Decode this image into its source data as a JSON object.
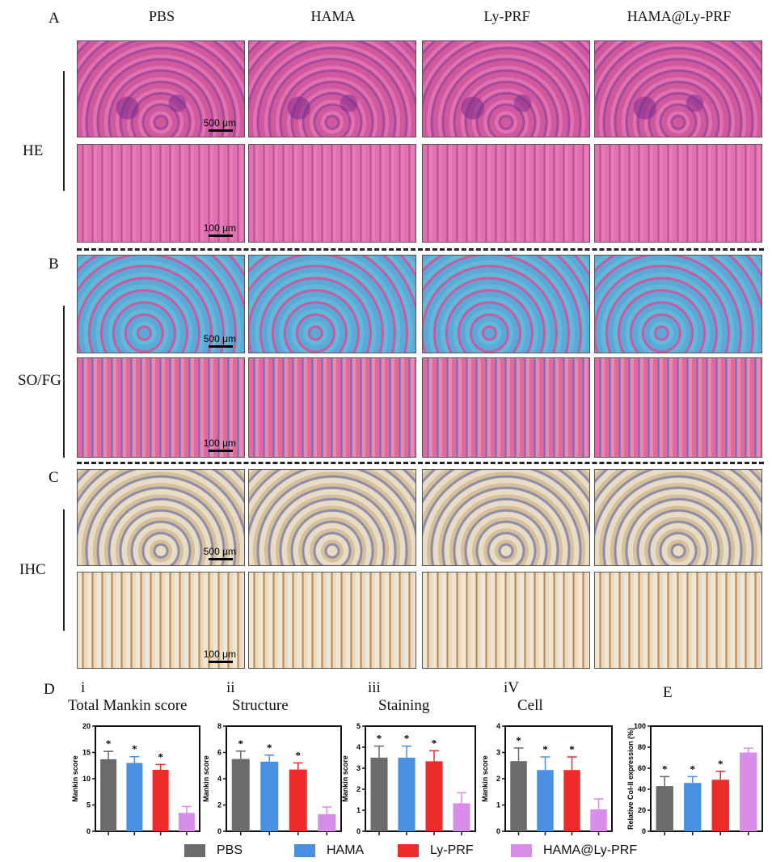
{
  "panel_letters": {
    "A": "A",
    "B": "B",
    "C": "C",
    "D": "D",
    "E": "E"
  },
  "groups": [
    "PBS",
    "HAMA",
    "Ly-PRF",
    "HAMA@Ly-PRF"
  ],
  "row_labels": {
    "he": "HE",
    "so": "SO/FG",
    "ihc": "IHC"
  },
  "scale_bars": {
    "low": "500 μm",
    "high": "100 μm"
  },
  "colors": {
    "PBS": "#6b6b6b",
    "HAMA": "#4a90e2",
    "Ly-PRF": "#ee2a2a",
    "HAMA@Ly-PRF": "#d88ee8"
  },
  "chart_data": [
    {
      "type": "bar",
      "id": "i",
      "numeral": "i",
      "title": "Total Mankin  score",
      "ylabel": "Mankin score",
      "ylim": [
        0,
        20
      ],
      "ticks": [
        0,
        5,
        10,
        15,
        20
      ],
      "categories": [
        "PBS",
        "HAMA",
        "Ly-PRF",
        "HAMA@Ly-PRF"
      ],
      "values": [
        13.7,
        13.0,
        11.7,
        3.5
      ],
      "errors": [
        1.5,
        1.2,
        1.0,
        1.2
      ],
      "significance": [
        "*",
        "*",
        "*",
        ""
      ]
    },
    {
      "type": "bar",
      "id": "ii",
      "numeral": "ii",
      "title": "Structure",
      "ylabel": "Mankin score",
      "ylim": [
        0,
        8
      ],
      "ticks": [
        0,
        2,
        4,
        6,
        8
      ],
      "categories": [
        "PBS",
        "HAMA",
        "Ly-PRF",
        "HAMA@Ly-PRF"
      ],
      "values": [
        5.5,
        5.3,
        4.7,
        1.3
      ],
      "errors": [
        0.6,
        0.5,
        0.5,
        0.55
      ],
      "significance": [
        "*",
        "*",
        "*",
        ""
      ]
    },
    {
      "type": "bar",
      "id": "iii",
      "numeral": "iii",
      "title": "Staining",
      "ylabel": "Mankin score",
      "ylim": [
        0,
        5
      ],
      "ticks": [
        0,
        1,
        2,
        3,
        4,
        5
      ],
      "categories": [
        "PBS",
        "HAMA",
        "Ly-PRF",
        "HAMA@Ly-PRF"
      ],
      "values": [
        3.5,
        3.5,
        3.33,
        1.33
      ],
      "errors": [
        0.55,
        0.55,
        0.5,
        0.5
      ],
      "significance": [
        "*",
        "*",
        "*",
        ""
      ]
    },
    {
      "type": "bar",
      "id": "iv",
      "numeral": "iV",
      "title": "Cell",
      "ylabel": "Mankin score",
      "ylim": [
        0,
        4
      ],
      "ticks": [
        0,
        1,
        2,
        3,
        4
      ],
      "categories": [
        "PBS",
        "HAMA",
        "Ly-PRF",
        "HAMA@Ly-PRF"
      ],
      "values": [
        2.67,
        2.33,
        2.33,
        0.83
      ],
      "errors": [
        0.5,
        0.5,
        0.5,
        0.4
      ],
      "significance": [
        "*",
        "*",
        "*",
        ""
      ]
    },
    {
      "type": "bar",
      "id": "E",
      "numeral": "",
      "title": "",
      "ylabel": "Relative Col-II expression (%)",
      "ylim": [
        0,
        100
      ],
      "ticks": [
        0,
        20,
        40,
        60,
        80,
        100
      ],
      "categories": [
        "PBS",
        "HAMA",
        "Ly-PRF",
        "HAMA@Ly-PRF"
      ],
      "values": [
        43,
        46,
        49,
        75
      ],
      "errors": [
        9,
        6,
        8,
        4
      ],
      "significance": [
        "*",
        "*",
        "*",
        ""
      ]
    }
  ]
}
